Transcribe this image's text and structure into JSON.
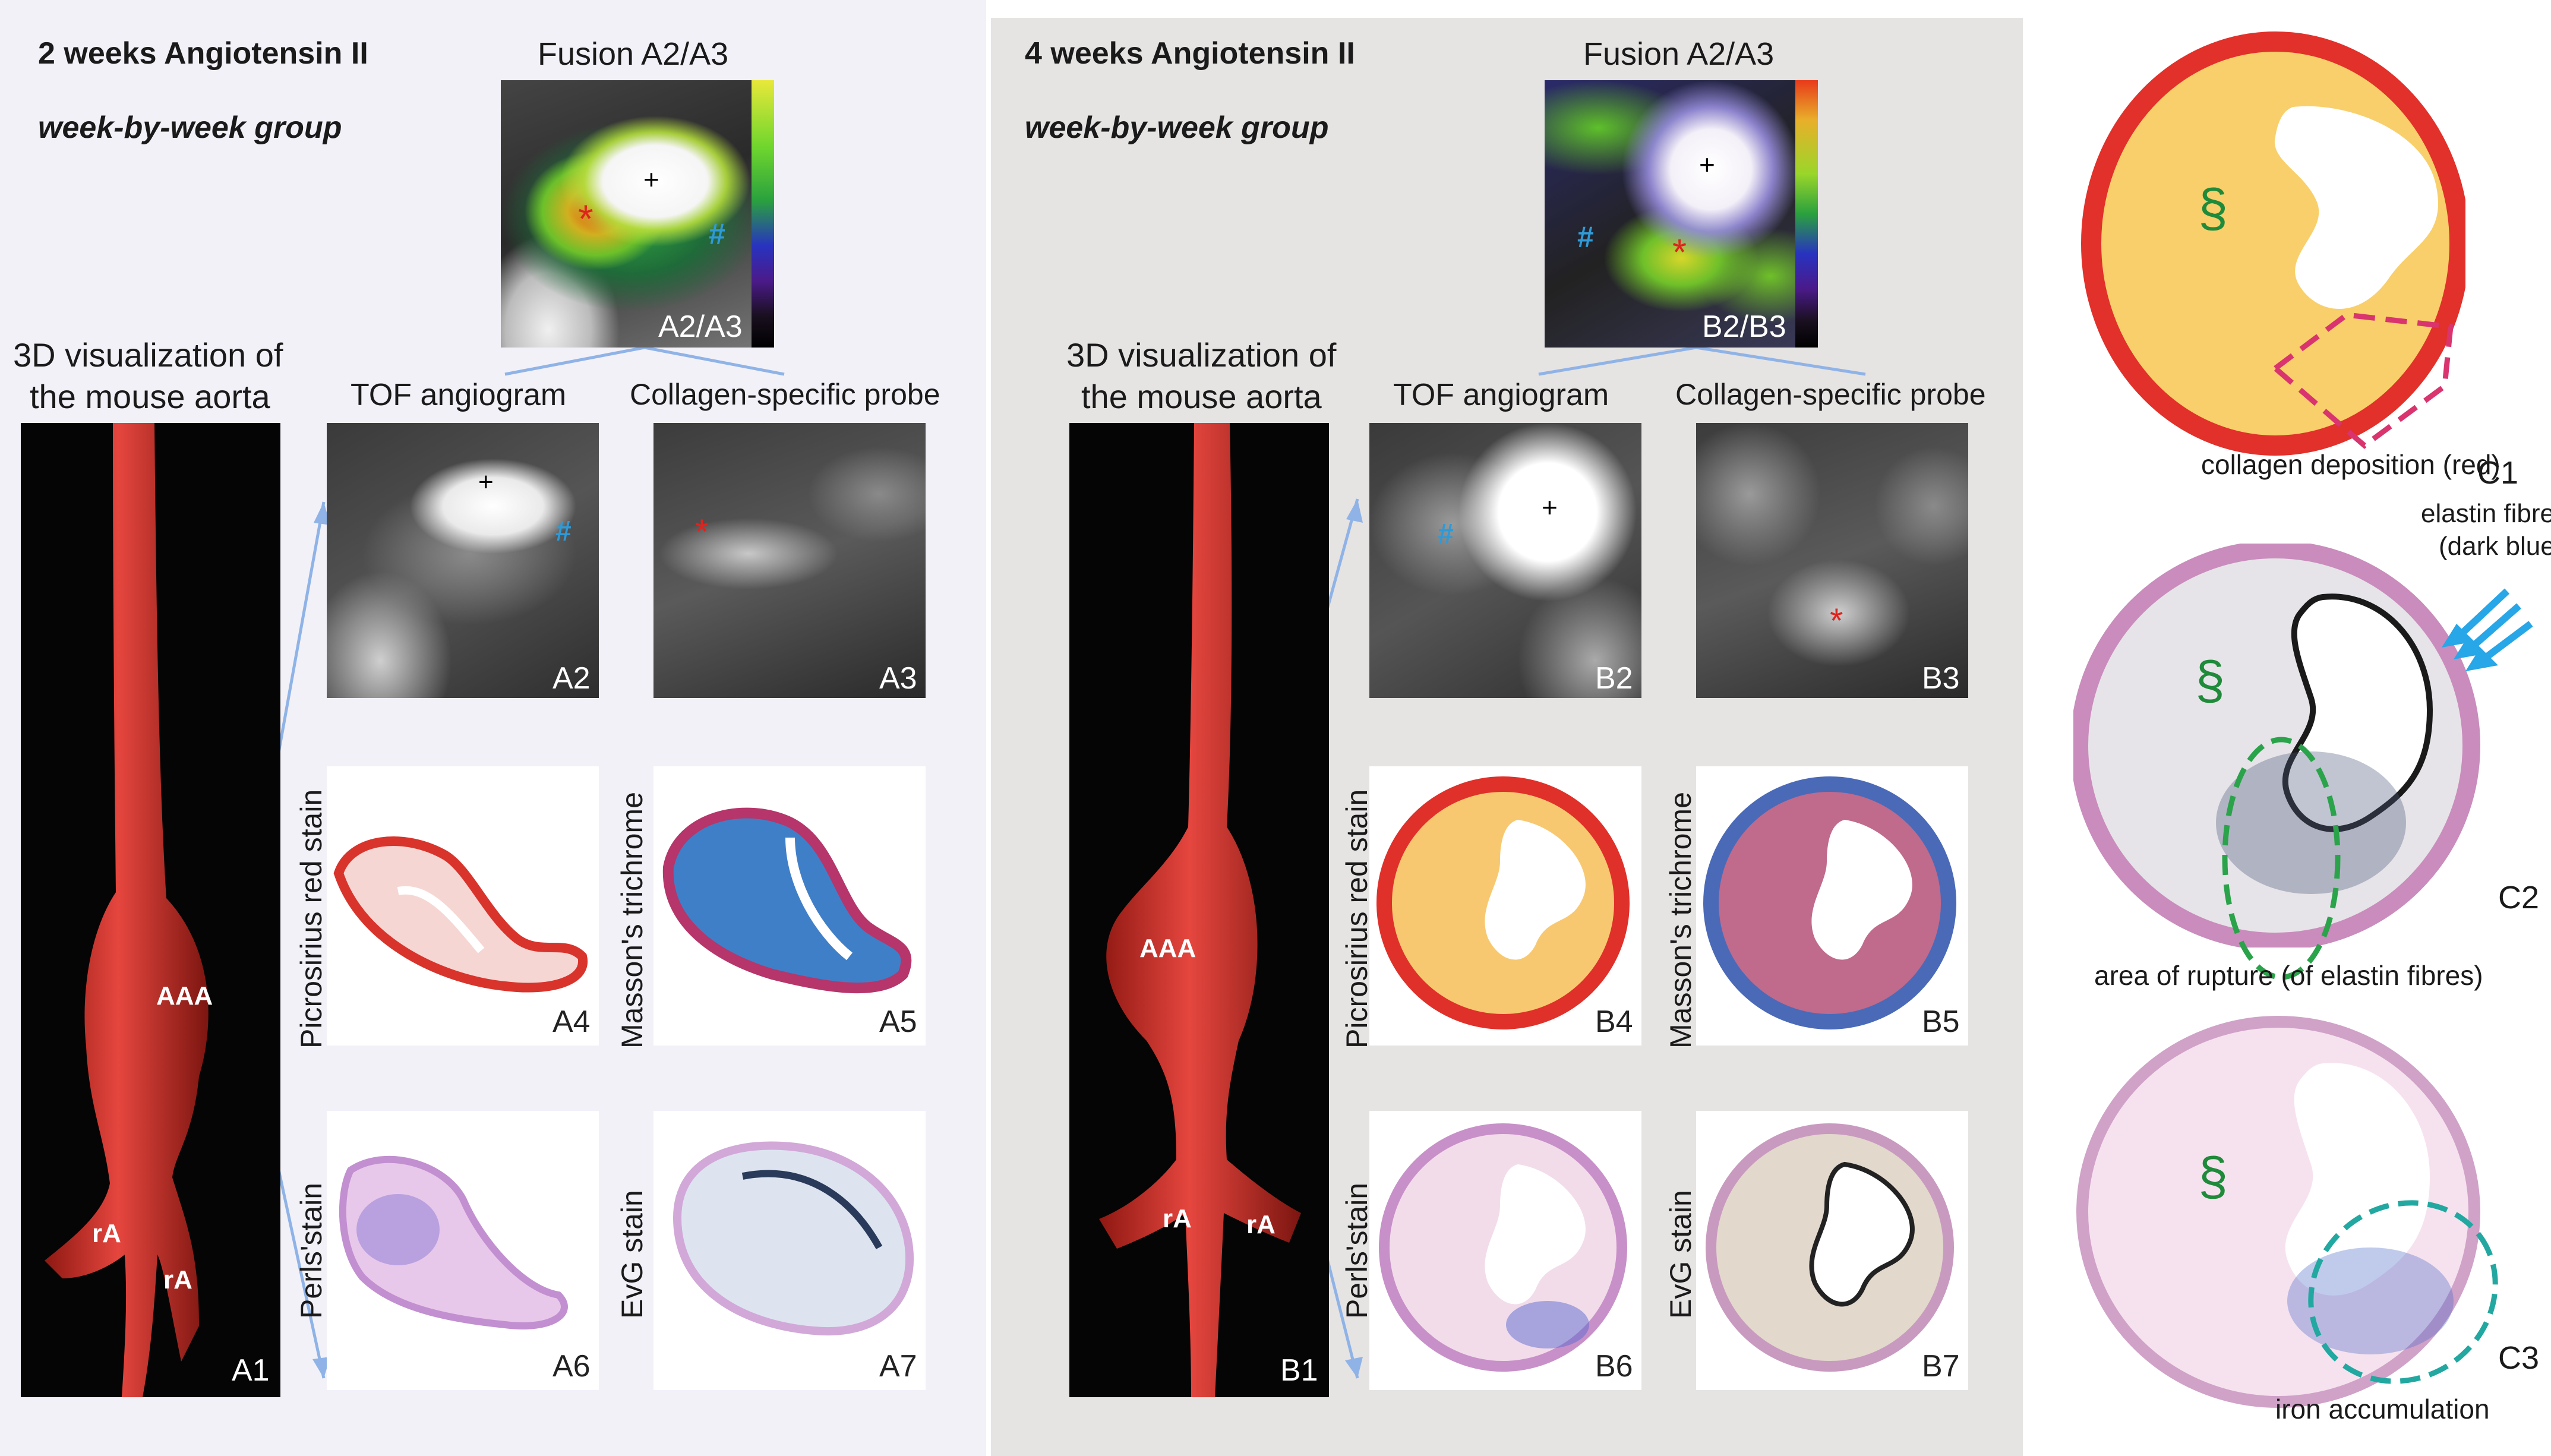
{
  "panelA": {
    "title": "2 weeks Angiotensin II",
    "subtitle": "week-by-week group",
    "fusion_title": "Fusion A2/A3",
    "viz_title_line1": "3D visualization of",
    "viz_title_line2": "the mouse aorta",
    "tof_label": "TOF angiogram",
    "probe_label": "Collagen-specific probe",
    "aaa": "AAA",
    "ra1": "rA",
    "ra2": "rA",
    "tags": {
      "a1": "A1",
      "a2": "A2",
      "a3": "A3",
      "a23": "A2/A3",
      "a4": "A4",
      "a5": "A5",
      "a6": "A6",
      "a7": "A7"
    },
    "stains": {
      "picro": "Picrosirius red stain",
      "masson": "Masson's trichrome",
      "perls": "Perls'stain",
      "evg": "EvG stain"
    },
    "marks": {
      "plus": "+",
      "hash": "#",
      "star": "*"
    }
  },
  "panelB": {
    "title": "4 weeks Angiotensin II",
    "subtitle": "week-by-week group",
    "fusion_title": "Fusion A2/A3",
    "viz_title_line1": "3D visualization of",
    "viz_title_line2": "the mouse aorta",
    "tof_label": "TOF angiogram",
    "probe_label": "Collagen-specific probe",
    "aaa": "AAA",
    "ra1": "rA",
    "ra2": "rA",
    "tags": {
      "b1": "B1",
      "b2": "B2",
      "b3": "B3",
      "b23": "B2/B3",
      "b4": "B4",
      "b5": "B5",
      "b6": "B6",
      "b7": "B7"
    },
    "stains": {
      "picro": "Picrosirius red stain",
      "masson": "Masson's trichrome",
      "perls": "Perls'stain",
      "evg": "EvG stain"
    },
    "marks": {
      "plus": "+",
      "hash": "#",
      "star": "*"
    }
  },
  "panelC": {
    "c1_tag": "C1",
    "c2_tag": "C2",
    "c3_tag": "C3",
    "c1_caption": "collagen deposition (red)",
    "c2_elastin_line1": "elastin fibres",
    "c2_elastin_line2": "(dark blue)",
    "c2_caption": "area of rupture (of elastin fibres)",
    "c3_caption": "iron accumulation",
    "section": "§"
  },
  "colors": {
    "panelA_bg": "#f2f1f8",
    "panelB_bg": "#e6e3e3",
    "aorta": "#d93a34",
    "connector": "#8fb3e6",
    "hash": "#2f9ad6",
    "star": "#e0231d",
    "section": "#1f8a3a",
    "rupture": "#2aa34a",
    "iron": "#22a8a0",
    "collagen_box": "#d9346e",
    "arrow": "#27a6e8"
  }
}
